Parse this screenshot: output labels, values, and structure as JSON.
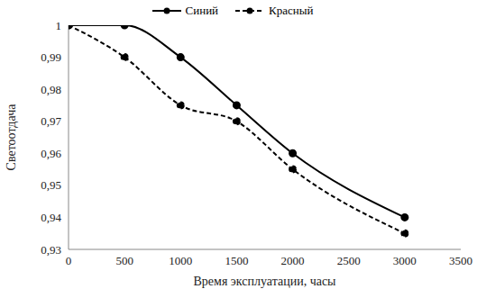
{
  "chart_data": {
    "type": "line",
    "xlabel": "Время эксплуатации, часы",
    "ylabel": "Светоотдача",
    "x": [
      0,
      500,
      1000,
      1500,
      2000,
      3000
    ],
    "series": [
      {
        "name": "Синий",
        "color": "#000000",
        "marker": "circle",
        "line_style": "solid",
        "values": [
          1,
          1,
          0.99,
          0.975,
          0.96,
          0.94
        ]
      },
      {
        "name": "Красный",
        "color": "#000000",
        "marker": "circle",
        "line_style": "dashed",
        "values": [
          1,
          0.99,
          0.975,
          0.97,
          0.955,
          0.935
        ]
      }
    ],
    "xlim": [
      0,
      3500
    ],
    "xticks": [
      0,
      500,
      1000,
      1500,
      2000,
      2500,
      3000,
      3500
    ],
    "ylim": [
      0.93,
      1
    ],
    "yticks": [
      {
        "value": 0.93,
        "label": "0,93"
      },
      {
        "value": 0.94,
        "label": "0,94"
      },
      {
        "value": 0.95,
        "label": "0,95"
      },
      {
        "value": 0.96,
        "label": "0,96"
      },
      {
        "value": 0.97,
        "label": "0,97"
      },
      {
        "value": 0.98,
        "label": "0,98"
      },
      {
        "value": 0.99,
        "label": "0,99"
      },
      1
    ],
    "grid": false,
    "legend": "top"
  }
}
